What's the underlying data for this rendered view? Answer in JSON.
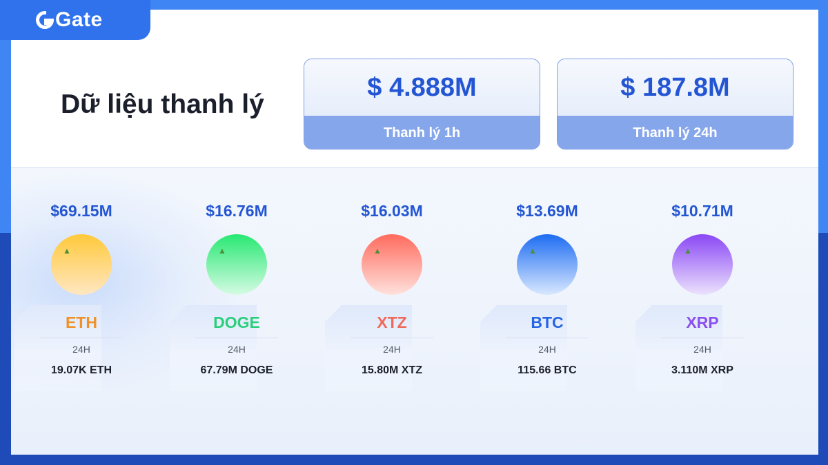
{
  "brand": {
    "logo_text": "Gate"
  },
  "page": {
    "title": "Dữ liệu thanh lý"
  },
  "stats": [
    {
      "value": "$ 4.888M",
      "label": "Thanh lý 1h"
    },
    {
      "value": "$ 187.8M",
      "label": "Thanh lý 24h"
    }
  ],
  "coins": [
    {
      "amount": "$69.15M",
      "symbol": "ETH",
      "period": "24H",
      "quantity": "19.07K ETH",
      "color": "#f0922a",
      "ball_gradient": [
        "#ffc93a",
        "#ffe7c2"
      ]
    },
    {
      "amount": "$16.76M",
      "symbol": "DOGE",
      "period": "24H",
      "quantity": "67.79M DOGE",
      "color": "#2bcf7a",
      "ball_gradient": [
        "#27e872",
        "#d6fbe4"
      ]
    },
    {
      "amount": "$16.03M",
      "symbol": "XTZ",
      "period": "24H",
      "quantity": "15.80M XTZ",
      "color": "#f06a5c",
      "ball_gradient": [
        "#ff6b5d",
        "#ffe1dd"
      ]
    },
    {
      "amount": "$13.69M",
      "symbol": "BTC",
      "period": "24H",
      "quantity": "115.66 BTC",
      "color": "#2565e4",
      "ball_gradient": [
        "#1d6cf2",
        "#d9e8ff"
      ]
    },
    {
      "amount": "$10.71M",
      "symbol": "XRP",
      "period": "24H",
      "quantity": "3.110M XRP",
      "color": "#8a4ff0",
      "ball_gradient": [
        "#8a47f5",
        "#ece2fd"
      ]
    }
  ]
}
